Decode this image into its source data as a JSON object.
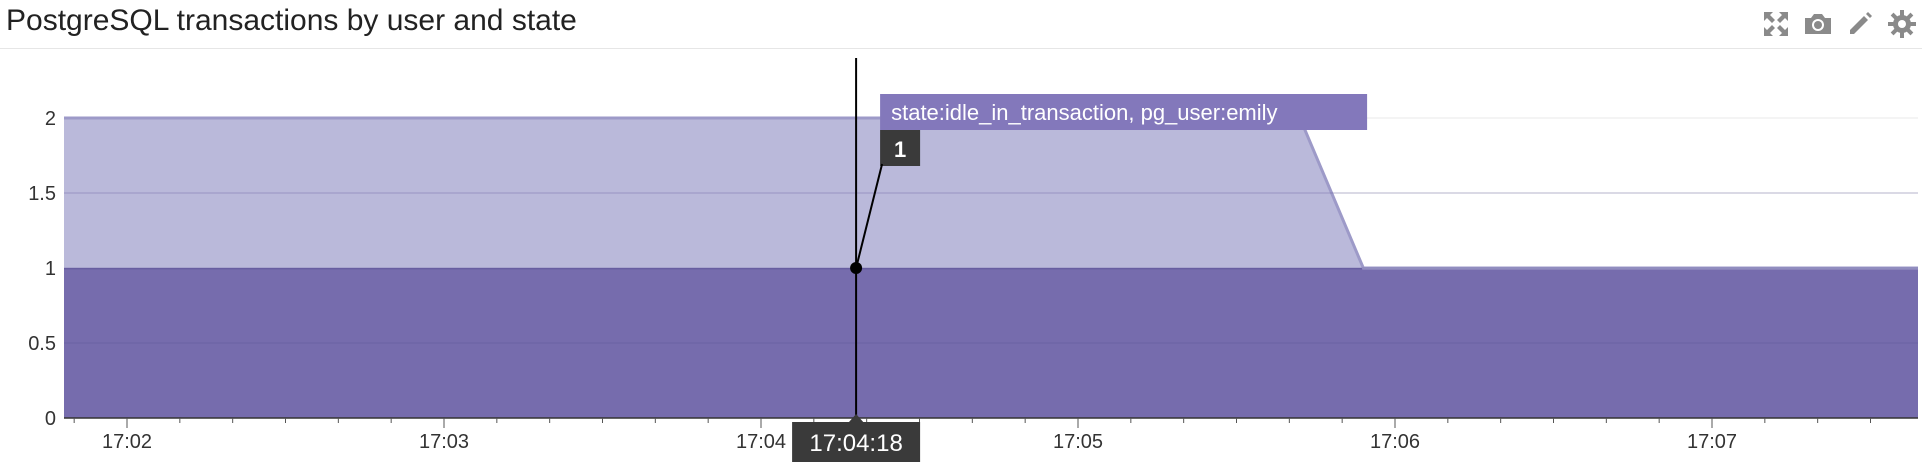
{
  "widget": {
    "title": "PostgreSQL transactions by user and state",
    "icons": [
      "expand-icon",
      "camera-icon",
      "pencil-icon",
      "gear-icon"
    ]
  },
  "chart_data": {
    "type": "area",
    "stacked": true,
    "x": [
      "17:01:45",
      "17:04:18",
      "17:05:42",
      "17:05:54",
      "17:07:36"
    ],
    "x_ticks": [
      "17:02",
      "17:03",
      "17:04",
      "17:05",
      "17:06",
      "17:07"
    ],
    "y_ticks": [
      "0",
      "0.5",
      "1",
      "1.5",
      "2"
    ],
    "ylim": [
      0,
      2.4
    ],
    "grid": true,
    "series": [
      {
        "values": [
          1,
          1,
          1,
          1,
          1
        ],
        "color": "#766cad"
      },
      {
        "name": "state:idle_in_transaction, pg_user:emily",
        "values": [
          1,
          1,
          1,
          0,
          0
        ],
        "color": "#bab9da"
      }
    ],
    "cursor": {
      "time": "17:04:18",
      "series_label": "state:idle_in_transaction, pg_user:emily",
      "value": "1"
    }
  },
  "colors": {
    "series_dark": "#766cad",
    "series_light": "#bab9da",
    "series_light_stroke": "#9d9ac8",
    "tooltip_bg": "#8378bb",
    "label_bg": "#3a3a3a"
  }
}
